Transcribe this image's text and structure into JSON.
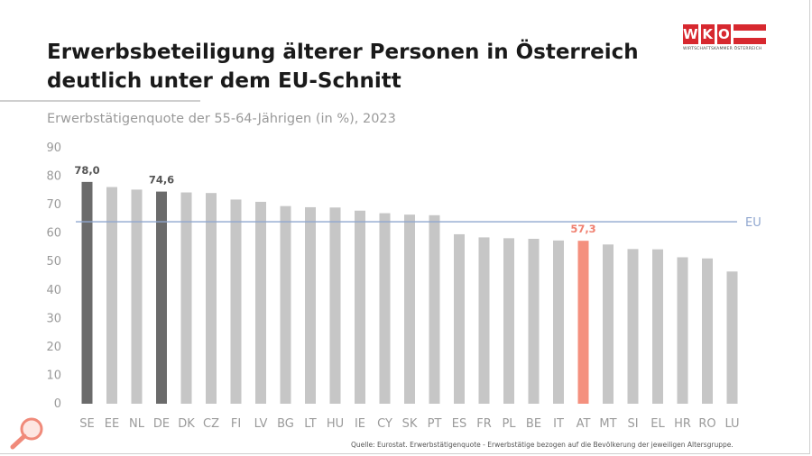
{
  "header": {
    "title_line1": "Erwerbsbeteiligung älterer Personen in Österreich",
    "title_line2": "deutlich unter dem EU-Schnitt",
    "subtitle": "Erwerbstätigenquote der 55-64-Jährigen (in %), 2023"
  },
  "logo": {
    "letters": [
      "W",
      "K",
      "O"
    ],
    "tagline": "WIRTSCHAFTSKAMMER ÖSTERREICH",
    "icon": "austrian-flag-icon"
  },
  "footer": {
    "source": "Quelle:  Eurostat. Erwerbstätigenquote - Erwerbstätige bezogen auf die Bevölkerung der jeweiligen Altersgruppe.",
    "icon": "magnifier-icon"
  },
  "colors": {
    "bar_default": "#c6c6c6",
    "bar_highlight": "#6b6b6b",
    "bar_austria": "#f4907e",
    "label_austria": "#f08070",
    "label_highlight": "#555555",
    "eu_line": "#8fa6cf",
    "axis_text": "#9a9a9a",
    "brand_red": "#d7282f"
  },
  "chart_data": {
    "type": "bar",
    "title": "Erwerbstätigenquote der 55-64-Jährigen (in %), 2023",
    "xlabel": "",
    "ylabel": "",
    "ylim": [
      0,
      90
    ],
    "yticks": [
      0,
      10,
      20,
      30,
      40,
      50,
      60,
      70,
      80,
      90
    ],
    "grid": false,
    "categories": [
      "SE",
      "EE",
      "NL",
      "DE",
      "DK",
      "CZ",
      "FI",
      "LV",
      "BG",
      "LT",
      "HU",
      "IE",
      "CY",
      "SK",
      "PT",
      "ES",
      "FR",
      "PL",
      "BE",
      "IT",
      "AT",
      "MT",
      "SI",
      "EL",
      "HR",
      "RO",
      "LU"
    ],
    "values": [
      78.0,
      76.2,
      75.3,
      74.6,
      74.3,
      74.1,
      71.8,
      71.0,
      69.5,
      69.1,
      69.0,
      67.9,
      67.0,
      66.5,
      66.3,
      59.6,
      58.5,
      58.2,
      58.0,
      57.4,
      57.3,
      56.0,
      54.4,
      54.3,
      51.5,
      51.1,
      46.5
    ],
    "highlight": [
      "SE",
      "DE"
    ],
    "focus": "AT",
    "data_labels": [
      {
        "category": "SE",
        "text": "78,0"
      },
      {
        "category": "DE",
        "text": "74,6"
      },
      {
        "category": "AT",
        "text": "57,3"
      }
    ],
    "reference_line": {
      "label": "EU",
      "value": 64.0
    }
  }
}
